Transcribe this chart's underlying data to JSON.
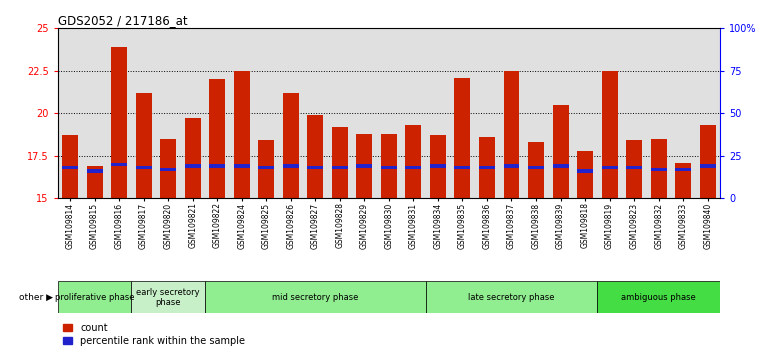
{
  "title": "GDS2052 / 217186_at",
  "samples": [
    "GSM109814",
    "GSM109815",
    "GSM109816",
    "GSM109817",
    "GSM109820",
    "GSM109821",
    "GSM109822",
    "GSM109824",
    "GSM109825",
    "GSM109826",
    "GSM109827",
    "GSM109828",
    "GSM109829",
    "GSM109830",
    "GSM109831",
    "GSM109834",
    "GSM109835",
    "GSM109836",
    "GSM109837",
    "GSM109838",
    "GSM109839",
    "GSM109818",
    "GSM109819",
    "GSM109823",
    "GSM109832",
    "GSM109833",
    "GSM109840"
  ],
  "count_values": [
    18.7,
    16.9,
    23.9,
    21.2,
    18.5,
    19.7,
    22.0,
    22.5,
    18.4,
    21.2,
    19.9,
    19.2,
    18.8,
    18.8,
    19.3,
    18.7,
    22.1,
    18.6,
    22.5,
    18.3,
    20.5,
    17.8,
    22.5,
    18.4,
    18.5,
    17.1,
    19.3
  ],
  "percentile_values": [
    16.7,
    16.5,
    16.9,
    16.7,
    16.6,
    16.8,
    16.8,
    16.8,
    16.7,
    16.8,
    16.7,
    16.7,
    16.8,
    16.7,
    16.7,
    16.8,
    16.7,
    16.7,
    16.8,
    16.7,
    16.8,
    16.5,
    16.7,
    16.7,
    16.6,
    16.6,
    16.8
  ],
  "phases": [
    {
      "label": "proliferative phase",
      "start": 0,
      "end": 3,
      "color": "#90EE90"
    },
    {
      "label": "early secretory\nphase",
      "start": 3,
      "end": 6,
      "color": "#c8f0c8"
    },
    {
      "label": "mid secretory phase",
      "start": 6,
      "end": 15,
      "color": "#90EE90"
    },
    {
      "label": "late secretory phase",
      "start": 15,
      "end": 22,
      "color": "#90EE90"
    },
    {
      "label": "ambiguous phase",
      "start": 22,
      "end": 27,
      "color": "#44DD44"
    }
  ],
  "ylim_left": [
    15,
    25
  ],
  "yticks_left": [
    15,
    17.5,
    20,
    22.5,
    25
  ],
  "ytick_labels_left": [
    "15",
    "17.5",
    "20",
    "22.5",
    "25"
  ],
  "yticks_right": [
    0,
    25,
    50,
    75,
    100
  ],
  "ytick_labels_right": [
    "0",
    "25",
    "50",
    "75",
    "100%"
  ],
  "bar_color_count": "#cc2200",
  "bar_color_pct": "#2222cc",
  "bar_width": 0.65,
  "bg_color": "#e0e0e0"
}
